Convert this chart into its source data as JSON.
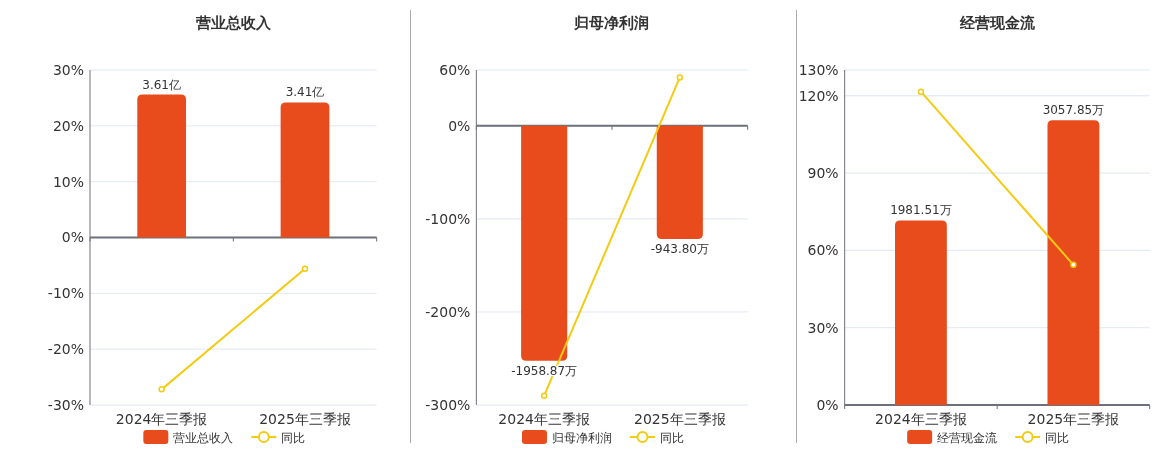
{
  "chart_data": [
    {
      "type": "bar",
      "title": "营业总收入",
      "categories": [
        "2024年三季报",
        "2025年三季报"
      ],
      "series": [
        {
          "name": "营业总收入",
          "type": "bar",
          "axis": "y2",
          "color": "#e84c1d",
          "values": [
            3.61,
            3.41
          ],
          "value_labels": [
            "3.61亿",
            "3.41亿"
          ]
        },
        {
          "name": "同比",
          "type": "line",
          "color": "#f2cb12",
          "marker": "circle",
          "values": [
            -27.2,
            -5.6
          ]
        }
      ],
      "ylim": [
        -30,
        30
      ],
      "yticks": [
        {
          "value": -30,
          "label": "-30%"
        },
        {
          "value": -20,
          "label": "-20%"
        },
        {
          "value": -10,
          "label": "-10%"
        },
        {
          "value": 0,
          "label": "0%"
        },
        {
          "value": 10,
          "label": "10%"
        },
        {
          "value": 20,
          "label": "20%"
        },
        {
          "value": 30,
          "label": "30%"
        }
      ],
      "y2lim": [
        -4.23,
        4.23
      ],
      "grid": "y",
      "legend": "bottom"
    },
    {
      "type": "bar",
      "title": "归母净利润",
      "categories": [
        "2024年三季报",
        "2025年三季报"
      ],
      "series": [
        {
          "name": "归母净利润",
          "type": "bar",
          "axis": "y2",
          "color": "#e84c1d",
          "values": [
            -1958.87,
            -943.8
          ],
          "value_labels": [
            "-1958.87万",
            "-943.80万"
          ]
        },
        {
          "name": "同比",
          "type": "line",
          "color": "#f2cb12",
          "marker": "circle",
          "values": [
            -290,
            52
          ]
        }
      ],
      "ylim": [
        -300,
        60
      ],
      "yticks": [
        {
          "value": -300,
          "label": "-300%"
        },
        {
          "value": -200,
          "label": "-200%"
        },
        {
          "value": -100,
          "label": "-100%"
        },
        {
          "value": 0,
          "label": "0%"
        },
        {
          "value": 60,
          "label": "60%"
        }
      ],
      "y2lim": [
        -2327,
        465.5
      ],
      "grid": "y",
      "legend": "bottom"
    },
    {
      "type": "bar",
      "title": "经营现金流",
      "categories": [
        "2024年三季报",
        "2025年三季报"
      ],
      "series": [
        {
          "name": "经营现金流",
          "type": "bar",
          "axis": "y2",
          "color": "#e84c1d",
          "values": [
            1981.51,
            3057.85
          ],
          "value_labels": [
            "1981.51万",
            "3057.85万"
          ]
        },
        {
          "name": "同比",
          "type": "line",
          "color": "#f2cb12",
          "marker": "circle",
          "values": [
            121.6,
            54.4
          ]
        }
      ],
      "ylim": [
        0,
        130
      ],
      "yticks": [
        {
          "value": 0,
          "label": "0%"
        },
        {
          "value": 30,
          "label": "30%"
        },
        {
          "value": 60,
          "label": "60%"
        },
        {
          "value": 90,
          "label": "90%"
        },
        {
          "value": 120,
          "label": "120%"
        },
        {
          "value": 130,
          "label": "130%"
        }
      ],
      "y2lim": [
        0,
        3597
      ],
      "grid": "y",
      "legend": "bottom"
    }
  ]
}
